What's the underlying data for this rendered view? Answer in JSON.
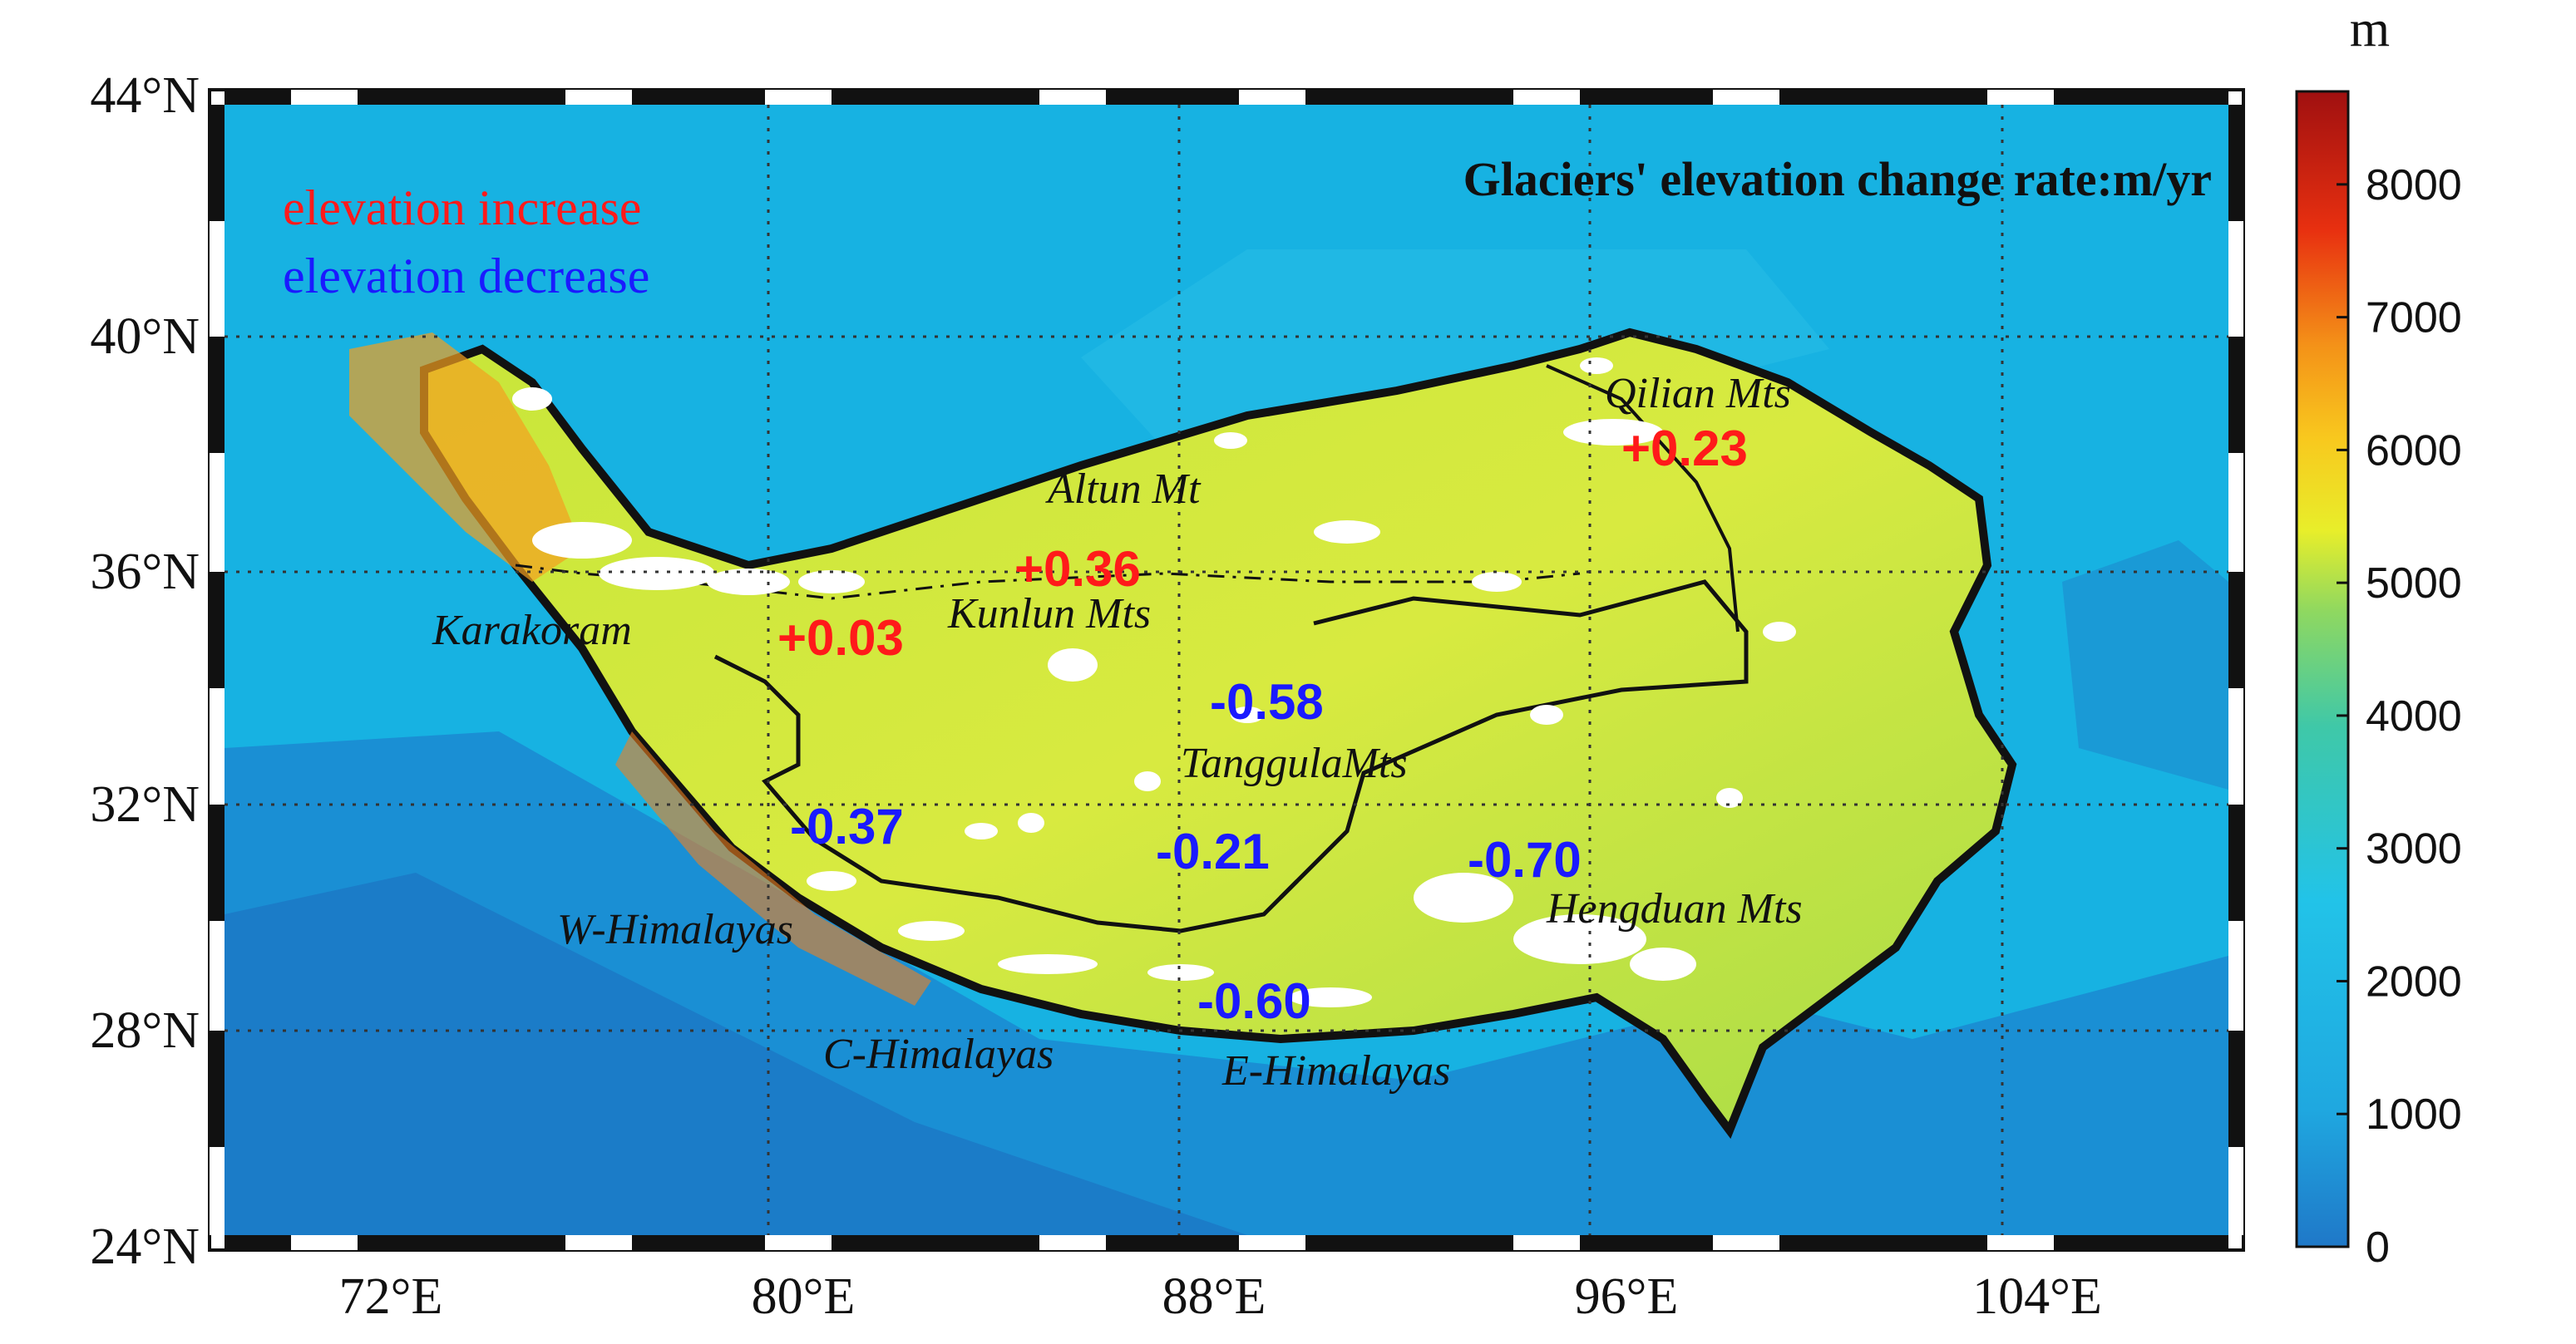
{
  "title": "Glaciers' elevation change rate:m/yr",
  "legend": [
    {
      "text": "elevation increase",
      "color": "#ff1a1a"
    },
    {
      "text": "elevation decrease",
      "color": "#1a1aff"
    }
  ],
  "axes": {
    "lat_ticks": [
      "44°N",
      "40°N",
      "36°N",
      "32°N",
      "28°N",
      "24°N"
    ],
    "lon_ticks": [
      "72°E",
      "80°E",
      "88°E",
      "96°E",
      "104°E"
    ]
  },
  "colorbar": {
    "unit": "m",
    "ticks": [
      "8000",
      "7000",
      "6000",
      "5000",
      "4000",
      "3000",
      "2000",
      "1000",
      "0"
    ],
    "range": [
      0,
      8700
    ]
  },
  "regions": [
    {
      "name": "Qilian Mts"
    },
    {
      "name": "Altun Mt"
    },
    {
      "name": "Kunlun  Mts"
    },
    {
      "name": "Karakoram"
    },
    {
      "name": "TanggulaMts"
    },
    {
      "name": "W-Himalayas"
    },
    {
      "name": "C-Himalayas"
    },
    {
      "name": "E-Himalayas"
    },
    {
      "name": "Hengduan Mts"
    }
  ],
  "rates": [
    {
      "value": "+0.23",
      "color": "#ff1a1a"
    },
    {
      "value": "+0.36",
      "color": "#ff1a1a"
    },
    {
      "value": "+0.03",
      "color": "#ff1a1a"
    },
    {
      "value": "-0.58",
      "color": "#1a1aff"
    },
    {
      "value": "-0.37",
      "color": "#1a1aff"
    },
    {
      "value": "-0.21",
      "color": "#1a1aff"
    },
    {
      "value": "-0.70",
      "color": "#1a1aff"
    },
    {
      "value": "-0.60",
      "color": "#1a1aff"
    }
  ]
}
